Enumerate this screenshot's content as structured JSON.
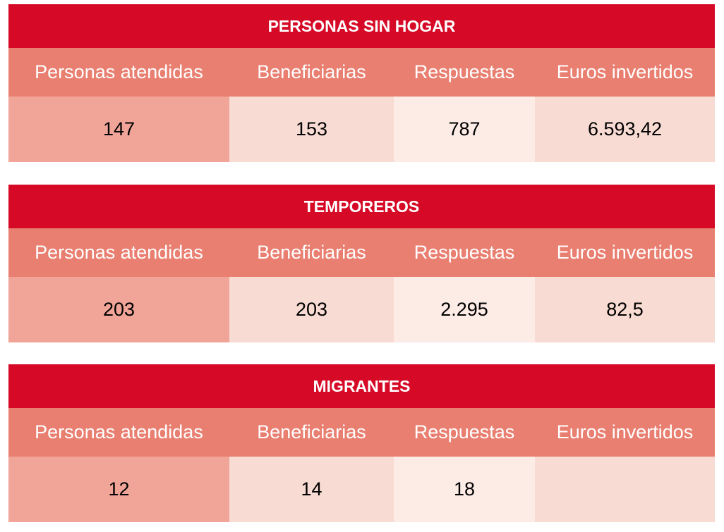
{
  "columns": [
    "Personas atendidas",
    "Beneficiarias",
    "Respuestas",
    "Euros invertidos"
  ],
  "tables": [
    {
      "title": "PERSONAS SIN HOGAR",
      "values": [
        "147",
        "153",
        "787",
        "6.593,42"
      ]
    },
    {
      "title": "TEMPOREROS",
      "values": [
        "203",
        "203",
        "2.295",
        "82,5"
      ]
    },
    {
      "title": "MIGRANTES",
      "values": [
        "12",
        "14",
        "18",
        ""
      ]
    }
  ]
}
